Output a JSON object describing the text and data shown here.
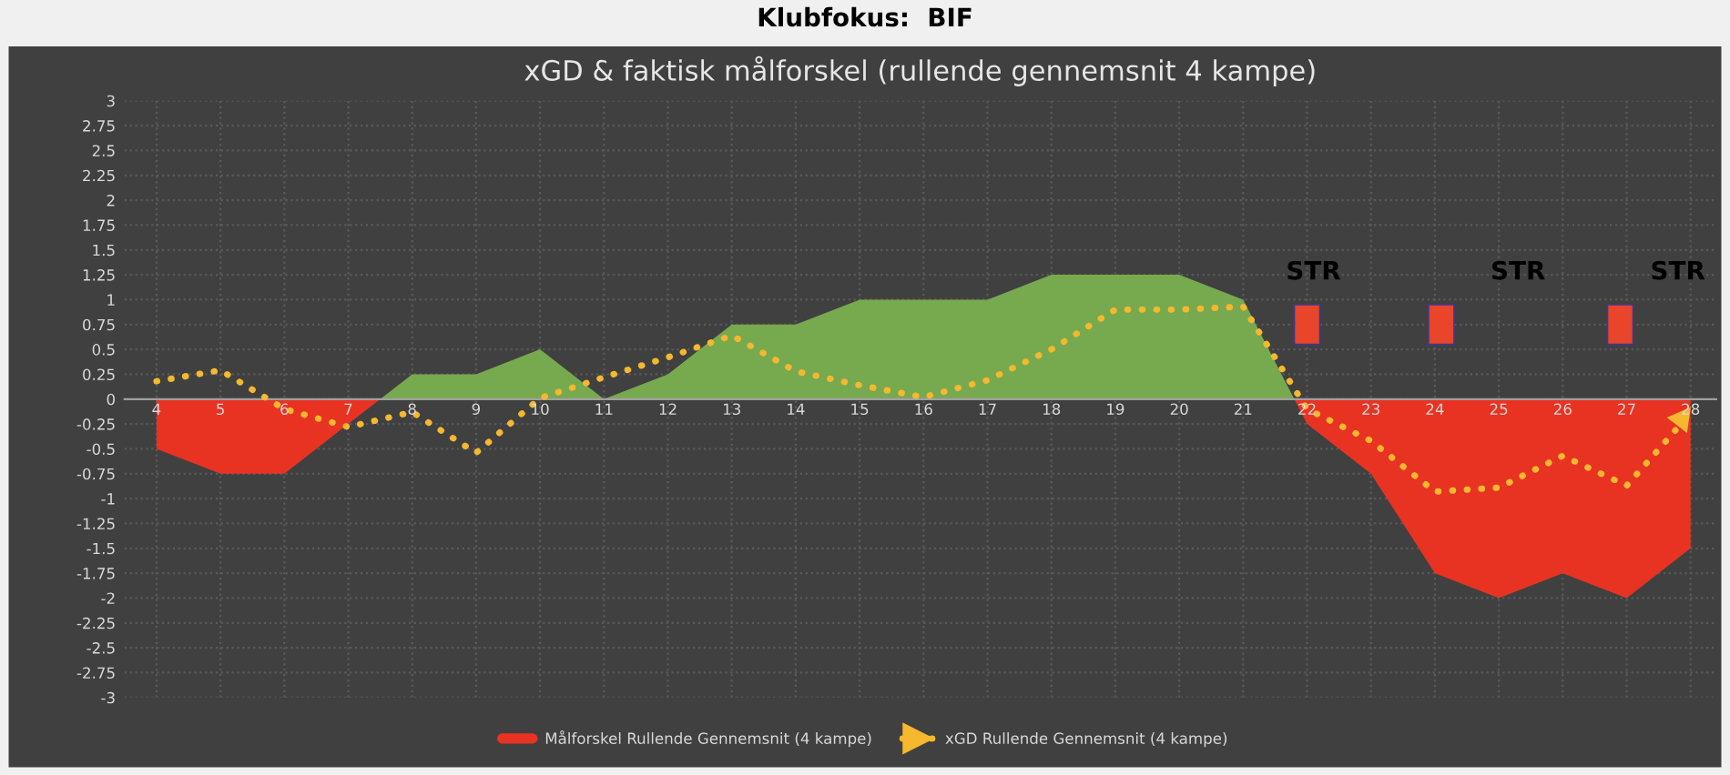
{
  "chart_data": {
    "type": "area",
    "title": "xGD & faktisk målforskel (rullende gennemsnit 4 kampe)",
    "subtitle": "Klubfokus:  BIF",
    "categories": [
      "4",
      "5",
      "6",
      "7",
      "8",
      "9",
      "10",
      "11",
      "12",
      "13",
      "14",
      "15",
      "16",
      "17",
      "18",
      "19",
      "20",
      "21",
      "22",
      "23",
      "24",
      "25",
      "26",
      "27",
      "28"
    ],
    "series": [
      {
        "name": "Målforskel Rullende Gennemsnit (4 kampe)",
        "type": "area",
        "color": "#e83323",
        "values": [
          -0.5,
          -0.75,
          -0.75,
          -0.25,
          0.25,
          null,
          null,
          null,
          null,
          null,
          null,
          null,
          null,
          null,
          null,
          null,
          null,
          1,
          -0.25,
          -0.75,
          -1.75,
          -2,
          -1.75,
          -2,
          -1.5
        ]
      },
      {
        "color": "#77a94f",
        "values": [
          null,
          null,
          null,
          -0.25,
          0.25,
          0.25,
          0.5,
          0,
          0.25,
          0.75,
          0.75,
          1,
          1,
          1,
          1.25,
          1.25,
          1.25,
          1,
          -0.25,
          null,
          null,
          null,
          null,
          null,
          null
        ]
      },
      {
        "name": "xGD Rullende Gennemsnit (4 kampe)",
        "type": "line",
        "color": "#f5b82e",
        "line_style": "dotted",
        "values": [
          0.18,
          0.29,
          -0.1,
          -0.28,
          -0.13,
          -0.54,
          0.01,
          0.22,
          0.42,
          0.64,
          0.28,
          0.14,
          0.02,
          0.19,
          0.5,
          0.9,
          0.9,
          0.93,
          -0.1,
          -0.42,
          -0.93,
          -0.89,
          -0.57,
          -0.87,
          -0.14
        ]
      }
    ],
    "ylim": [
      -3,
      3
    ],
    "yticks": [
      -3,
      -2.75,
      -2.5,
      -2.25,
      -2,
      -1.75,
      -1.5,
      -1.25,
      -1,
      -0.75,
      -0.5,
      -0.25,
      0,
      0.25,
      0.5,
      0.75,
      1,
      1.25,
      1.5,
      1.75,
      2,
      2.25,
      2.5,
      2.75,
      3
    ],
    "annotations": [
      "STR",
      "STR",
      "STR"
    ],
    "grid": true,
    "legend": "bottom"
  }
}
